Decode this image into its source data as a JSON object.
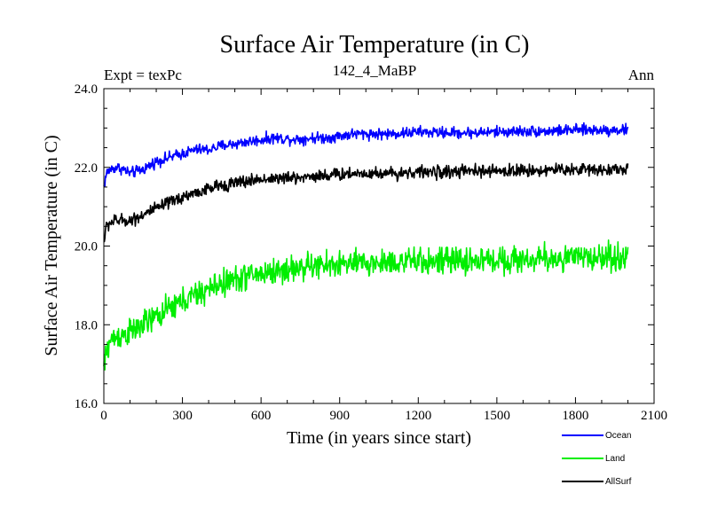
{
  "chart_data": {
    "type": "line",
    "title": "Surface Air Temperature (in C)",
    "subtitle_left": "Expt = texPc",
    "subtitle_center": "142_4_MaBP",
    "subtitle_right": "Ann",
    "xlabel": "Time (in years since start)",
    "ylabel": "Surface Air Temperature (in C)",
    "xlim": [
      0,
      2100
    ],
    "ylim": [
      16.0,
      24.0
    ],
    "xticks": [
      0,
      300,
      600,
      900,
      1200,
      1500,
      1800,
      2100
    ],
    "xtick_labels": [
      "0",
      "300",
      "600",
      "900",
      "1200",
      "1500",
      "1800",
      "2100"
    ],
    "yticks": [
      16.0,
      18.0,
      20.0,
      22.0,
      24.0
    ],
    "ytick_labels": [
      "16.0",
      "18.0",
      "20.0",
      "22.0",
      "24.0"
    ],
    "grid": false,
    "legend_position": "bottom-right",
    "series": [
      {
        "name": "Ocean",
        "color": "#0000ff",
        "x": [
          0,
          10,
          25,
          50,
          75,
          100,
          150,
          200,
          250,
          300,
          350,
          400,
          450,
          500,
          550,
          600,
          650,
          700,
          750,
          800,
          850,
          900,
          950,
          1000,
          1100,
          1200,
          1300,
          1400,
          1500,
          1600,
          1700,
          1800,
          1900,
          2000
        ],
        "values": [
          21.5,
          21.85,
          21.95,
          22.0,
          21.95,
          21.85,
          21.95,
          22.15,
          22.25,
          22.35,
          22.45,
          22.45,
          22.55,
          22.6,
          22.65,
          22.7,
          22.75,
          22.72,
          22.72,
          22.75,
          22.75,
          22.8,
          22.85,
          22.85,
          22.85,
          22.9,
          22.88,
          22.88,
          22.9,
          22.92,
          22.92,
          22.95,
          22.95,
          22.95
        ],
        "noise": 0.07
      },
      {
        "name": "Land",
        "color": "#00ee00",
        "x": [
          0,
          10,
          25,
          50,
          75,
          100,
          150,
          200,
          250,
          300,
          350,
          400,
          450,
          500,
          550,
          600,
          650,
          700,
          750,
          800,
          850,
          900,
          950,
          1000,
          1100,
          1200,
          1300,
          1400,
          1500,
          1600,
          1700,
          1800,
          1900,
          2000
        ],
        "values": [
          16.9,
          17.3,
          17.6,
          17.7,
          17.75,
          17.8,
          18.0,
          18.2,
          18.4,
          18.6,
          18.75,
          18.9,
          19.05,
          19.15,
          19.25,
          19.3,
          19.35,
          19.4,
          19.45,
          19.5,
          19.5,
          19.55,
          19.55,
          19.55,
          19.6,
          19.6,
          19.62,
          19.62,
          19.65,
          19.65,
          19.68,
          19.7,
          19.72,
          19.72
        ],
        "noise": 0.17
      },
      {
        "name": "AllSurf",
        "color": "#000000",
        "x": [
          0,
          10,
          25,
          50,
          75,
          100,
          150,
          200,
          250,
          300,
          350,
          400,
          450,
          500,
          550,
          600,
          650,
          700,
          750,
          800,
          850,
          900,
          950,
          1000,
          1100,
          1200,
          1300,
          1400,
          1500,
          1600,
          1700,
          1800,
          1900,
          2000
        ],
        "values": [
          20.1,
          20.5,
          20.6,
          20.65,
          20.65,
          20.65,
          20.8,
          20.95,
          21.1,
          21.25,
          21.35,
          21.45,
          21.55,
          21.6,
          21.65,
          21.7,
          21.72,
          21.72,
          21.75,
          21.78,
          21.8,
          21.82,
          21.85,
          21.85,
          21.85,
          21.88,
          21.88,
          21.9,
          21.9,
          21.92,
          21.93,
          21.95,
          21.95,
          21.95
        ],
        "noise": 0.08
      }
    ],
    "sample_step_years": 2
  }
}
